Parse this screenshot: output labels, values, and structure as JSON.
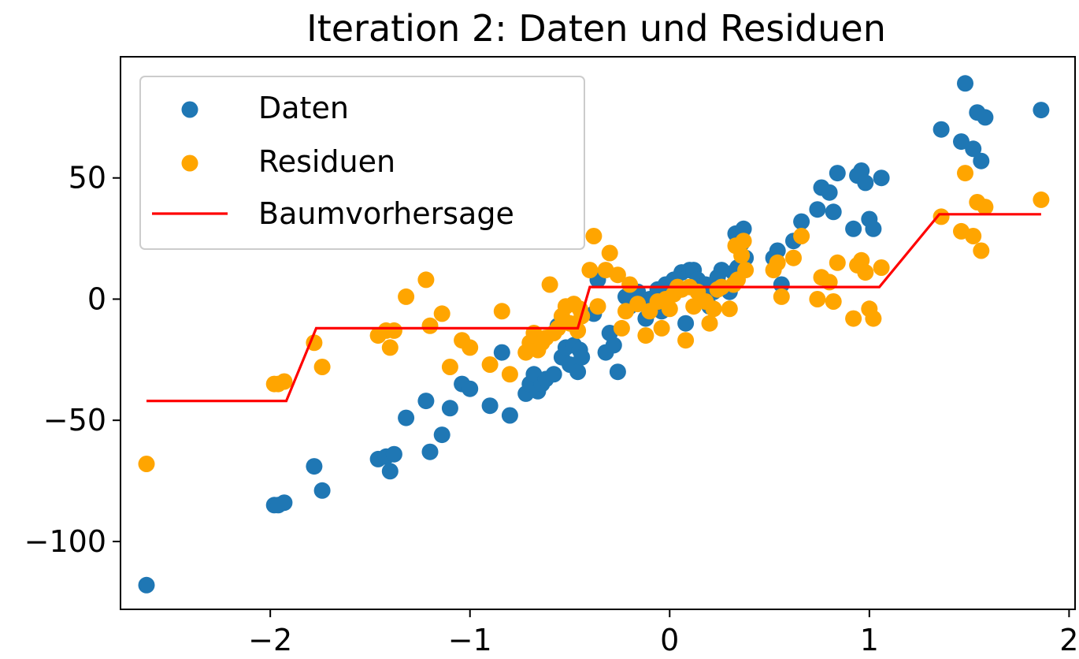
{
  "chart_data": {
    "type": "scatter",
    "title": "Iteration 2: Daten und Residuen",
    "xlabel": "",
    "ylabel": "",
    "xlim": [
      -2.75,
      2.03
    ],
    "ylim": [
      -128,
      100
    ],
    "x_ticks": [
      -2,
      -1,
      0,
      1,
      2
    ],
    "x_tick_labels": [
      "−2",
      "−1",
      "0",
      "1",
      "2"
    ],
    "y_ticks": [
      -100,
      -50,
      0,
      50
    ],
    "y_tick_labels": [
      "−100",
      "−50",
      "0",
      "50"
    ],
    "grid": false,
    "legend_position": "top-left",
    "series": [
      {
        "name": "Daten",
        "kind": "scatter",
        "color": "#1f77b4",
        "points": [
          [
            -2.62,
            -118
          ],
          [
            -1.98,
            -85
          ],
          [
            -1.96,
            -85
          ],
          [
            -1.93,
            -84
          ],
          [
            -1.78,
            -69
          ],
          [
            -1.74,
            -79
          ],
          [
            -1.46,
            -66
          ],
          [
            -1.42,
            -65
          ],
          [
            -1.4,
            -71
          ],
          [
            -1.38,
            -64
          ],
          [
            -1.32,
            -49
          ],
          [
            -1.22,
            -42
          ],
          [
            -1.2,
            -63
          ],
          [
            -1.14,
            -56
          ],
          [
            -1.1,
            -45
          ],
          [
            -1.04,
            -35
          ],
          [
            -1.0,
            -37
          ],
          [
            -0.9,
            -44
          ],
          [
            -0.84,
            -22
          ],
          [
            -0.8,
            -48
          ],
          [
            -0.72,
            -39
          ],
          [
            -0.7,
            -35
          ],
          [
            -0.68,
            -31
          ],
          [
            -0.66,
            -38
          ],
          [
            -0.64,
            -35
          ],
          [
            -0.62,
            -33
          ],
          [
            -0.58,
            -31
          ],
          [
            -0.56,
            -11
          ],
          [
            -0.54,
            -24
          ],
          [
            -0.52,
            -20
          ],
          [
            -0.5,
            -27
          ],
          [
            -0.48,
            -19
          ],
          [
            -0.46,
            -30
          ],
          [
            -0.45,
            -21
          ],
          [
            -0.44,
            -24
          ],
          [
            -0.38,
            -6
          ],
          [
            -0.36,
            8
          ],
          [
            -0.32,
            -22
          ],
          [
            -0.3,
            -14
          ],
          [
            -0.28,
            -19
          ],
          [
            -0.26,
            -30
          ],
          [
            -0.22,
            1
          ],
          [
            -0.2,
            -3
          ],
          [
            -0.16,
            3
          ],
          [
            -0.12,
            -8
          ],
          [
            -0.1,
            0
          ],
          [
            -0.06,
            4
          ],
          [
            -0.04,
            -5
          ],
          [
            -0.02,
            6
          ],
          [
            0.0,
            2
          ],
          [
            0.02,
            8
          ],
          [
            0.06,
            11
          ],
          [
            0.08,
            -10
          ],
          [
            0.1,
            12
          ],
          [
            0.12,
            12
          ],
          [
            0.14,
            8
          ],
          [
            0.18,
            6
          ],
          [
            0.2,
            -3
          ],
          [
            0.22,
            3
          ],
          [
            0.24,
            9
          ],
          [
            0.26,
            12
          ],
          [
            0.3,
            3
          ],
          [
            0.32,
            11
          ],
          [
            0.33,
            27
          ],
          [
            0.34,
            13
          ],
          [
            0.36,
            23
          ],
          [
            0.37,
            29
          ],
          [
            0.38,
            17
          ],
          [
            0.52,
            17
          ],
          [
            0.54,
            20
          ],
          [
            0.56,
            6
          ],
          [
            0.62,
            24
          ],
          [
            0.66,
            32
          ],
          [
            0.74,
            37
          ],
          [
            0.76,
            46
          ],
          [
            0.8,
            44
          ],
          [
            0.82,
            36
          ],
          [
            0.84,
            52
          ],
          [
            0.92,
            29
          ],
          [
            0.94,
            51
          ],
          [
            0.96,
            53
          ],
          [
            0.98,
            48
          ],
          [
            1.0,
            33
          ],
          [
            1.02,
            29
          ],
          [
            1.06,
            50
          ],
          [
            1.36,
            70
          ],
          [
            1.46,
            65
          ],
          [
            1.48,
            89
          ],
          [
            1.52,
            62
          ],
          [
            1.54,
            77
          ],
          [
            1.56,
            57
          ],
          [
            1.58,
            75
          ],
          [
            1.86,
            78
          ]
        ]
      },
      {
        "name": "Residuen",
        "kind": "scatter",
        "color": "#ffa500",
        "points": [
          [
            -2.62,
            -68
          ],
          [
            -1.98,
            -35
          ],
          [
            -1.96,
            -35
          ],
          [
            -1.93,
            -34
          ],
          [
            -1.78,
            -18
          ],
          [
            -1.74,
            -28
          ],
          [
            -1.46,
            -15
          ],
          [
            -1.42,
            -13
          ],
          [
            -1.4,
            -20
          ],
          [
            -1.38,
            -13
          ],
          [
            -1.32,
            1
          ],
          [
            -1.22,
            8
          ],
          [
            -1.2,
            -11
          ],
          [
            -1.14,
            -6
          ],
          [
            -1.1,
            -28
          ],
          [
            -1.04,
            -17
          ],
          [
            -1.0,
            -20
          ],
          [
            -0.9,
            -27
          ],
          [
            -0.84,
            -5
          ],
          [
            -0.8,
            -31
          ],
          [
            -0.72,
            -22
          ],
          [
            -0.7,
            -18
          ],
          [
            -0.68,
            -14
          ],
          [
            -0.66,
            -21
          ],
          [
            -0.64,
            -18
          ],
          [
            -0.62,
            -16
          ],
          [
            -0.6,
            6
          ],
          [
            -0.58,
            -14
          ],
          [
            -0.56,
            -12
          ],
          [
            -0.54,
            -7
          ],
          [
            -0.52,
            -3
          ],
          [
            -0.5,
            -10
          ],
          [
            -0.48,
            -2
          ],
          [
            -0.46,
            -13
          ],
          [
            -0.45,
            -4
          ],
          [
            -0.44,
            -7
          ],
          [
            -0.4,
            12
          ],
          [
            -0.38,
            26
          ],
          [
            -0.36,
            -3
          ],
          [
            -0.32,
            12
          ],
          [
            -0.3,
            19
          ],
          [
            -0.26,
            10
          ],
          [
            -0.24,
            -12
          ],
          [
            -0.22,
            -5
          ],
          [
            -0.2,
            6
          ],
          [
            -0.16,
            -2
          ],
          [
            -0.12,
            -15
          ],
          [
            -0.1,
            -5
          ],
          [
            -0.06,
            -1
          ],
          [
            -0.04,
            -12
          ],
          [
            -0.02,
            0
          ],
          [
            0.0,
            -4
          ],
          [
            0.02,
            2
          ],
          [
            0.04,
            5
          ],
          [
            0.06,
            4
          ],
          [
            0.08,
            -17
          ],
          [
            0.1,
            5
          ],
          [
            0.12,
            -3
          ],
          [
            0.14,
            3
          ],
          [
            0.18,
            -1
          ],
          [
            0.2,
            -10
          ],
          [
            0.22,
            -4
          ],
          [
            0.24,
            4
          ],
          [
            0.26,
            5
          ],
          [
            0.3,
            -4
          ],
          [
            0.32,
            6
          ],
          [
            0.33,
            22
          ],
          [
            0.34,
            8
          ],
          [
            0.36,
            18
          ],
          [
            0.37,
            24
          ],
          [
            0.38,
            12
          ],
          [
            0.52,
            12
          ],
          [
            0.54,
            15
          ],
          [
            0.56,
            1
          ],
          [
            0.62,
            17
          ],
          [
            0.66,
            26
          ],
          [
            0.74,
            0
          ],
          [
            0.76,
            9
          ],
          [
            0.8,
            7
          ],
          [
            0.82,
            -1
          ],
          [
            0.84,
            15
          ],
          [
            0.92,
            -8
          ],
          [
            0.94,
            14
          ],
          [
            0.96,
            16
          ],
          [
            0.98,
            11
          ],
          [
            1.0,
            -4
          ],
          [
            1.02,
            -8
          ],
          [
            1.06,
            13
          ],
          [
            1.36,
            34
          ],
          [
            1.46,
            28
          ],
          [
            1.48,
            52
          ],
          [
            1.52,
            26
          ],
          [
            1.54,
            40
          ],
          [
            1.56,
            20
          ],
          [
            1.58,
            38
          ],
          [
            1.86,
            41
          ]
        ]
      },
      {
        "name": "Baumvorhersage",
        "kind": "line",
        "color": "#ff0000",
        "points": [
          [
            -2.62,
            -42
          ],
          [
            -1.92,
            -42
          ],
          [
            -1.77,
            -12
          ],
          [
            -0.46,
            -12
          ],
          [
            -0.4,
            5
          ],
          [
            1.05,
            5
          ],
          [
            1.35,
            35
          ],
          [
            1.86,
            35
          ]
        ]
      }
    ]
  }
}
